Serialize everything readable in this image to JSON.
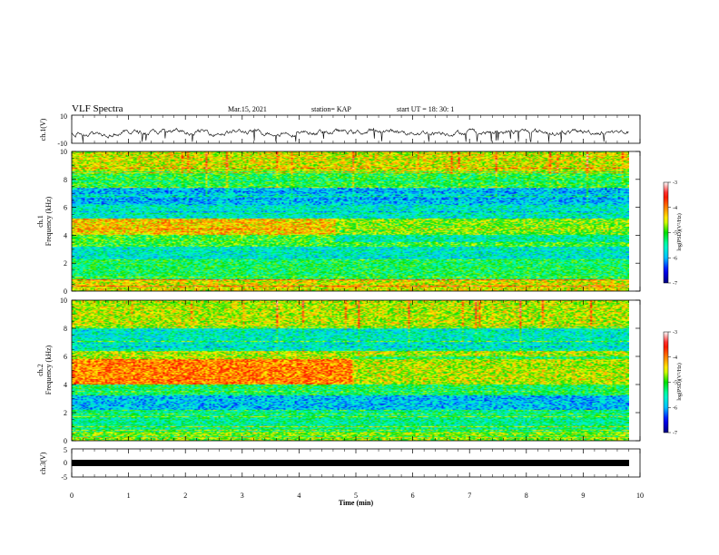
{
  "header": {
    "title": "VLF Spectra",
    "date": "Mar.15, 2021",
    "station": "station= KAP",
    "start": "start  UT =   18: 30: 1"
  },
  "chart_data": [
    {
      "type": "line",
      "panel": "ch1-waveform",
      "ylabel": "ch.1(V)",
      "yticks": [
        "10",
        "-10"
      ],
      "ylim": [
        -10,
        10
      ],
      "xlim": [
        0,
        10
      ],
      "note": "waveform trace with mean near -2 V, fluctuating roughly between -8 and 6 V"
    },
    {
      "type": "heatmap",
      "panel": "ch1-spectrogram",
      "ylabel": "ch.1\nFrequency (kHz)",
      "yticks": [
        "0",
        "2",
        "4",
        "6",
        "8",
        "10"
      ],
      "ylim": [
        0,
        10
      ],
      "xlim": [
        0,
        10
      ],
      "bands_khz": [
        {
          "from": 0,
          "to": 0.8,
          "level": -4.5
        },
        {
          "from": 0.8,
          "to": 2.2,
          "level": -5.2
        },
        {
          "from": 2.2,
          "to": 3.2,
          "level": -5.6
        },
        {
          "from": 3.2,
          "to": 4.0,
          "level": -5.0
        },
        {
          "from": 4.0,
          "to": 5.2,
          "level": -4.3
        },
        {
          "from": 5.2,
          "to": 6.2,
          "level": -5.6
        },
        {
          "from": 6.2,
          "to": 7.4,
          "level": -5.9
        },
        {
          "from": 7.4,
          "to": 8.6,
          "level": -5.1
        },
        {
          "from": 8.6,
          "to": 10,
          "level": -4.5
        }
      ],
      "colorbar": {
        "label": "log(PSD)(V²/Hz)",
        "ticks": [
          "-3",
          "-4",
          "-5",
          "-6",
          "-7"
        ],
        "range": [
          -7,
          -3
        ]
      }
    },
    {
      "type": "heatmap",
      "panel": "ch2-spectrogram",
      "ylabel": "ch.2\nFrequency (kHz)",
      "yticks": [
        "0",
        "2",
        "4",
        "6",
        "8",
        "10"
      ],
      "ylim": [
        0,
        10
      ],
      "xlim": [
        0,
        10
      ],
      "bands_khz": [
        {
          "from": 0,
          "to": 0.6,
          "level": -4.8
        },
        {
          "from": 0.6,
          "to": 2.2,
          "level": -5.4
        },
        {
          "from": 2.2,
          "to": 3.2,
          "level": -5.9
        },
        {
          "from": 3.2,
          "to": 4.0,
          "level": -5.2
        },
        {
          "from": 4.0,
          "to": 5.8,
          "level": -4.0
        },
        {
          "from": 5.8,
          "to": 6.4,
          "level": -4.6
        },
        {
          "from": 6.4,
          "to": 8.0,
          "level": -5.6
        },
        {
          "from": 8.0,
          "to": 10,
          "level": -4.6
        }
      ],
      "colorbar": {
        "label": "log(PSD)(V²/Hz)",
        "ticks": [
          "-3",
          "-4",
          "-5",
          "-6",
          "-7"
        ],
        "range": [
          -7,
          -3
        ]
      }
    },
    {
      "type": "line",
      "panel": "ch3-waveform",
      "ylabel": "ch.3(V)",
      "yticks": [
        "5",
        "0",
        "-5"
      ],
      "ylim": [
        -5,
        5
      ],
      "xlim": [
        0,
        10
      ],
      "note": "near-constant trace at about 0 V"
    }
  ],
  "xaxis": {
    "label": "Time  (min)",
    "ticks": [
      "0",
      "1",
      "2",
      "3",
      "4",
      "5",
      "6",
      "7",
      "8",
      "9",
      "10"
    ]
  },
  "colormap": [
    "#000080",
    "#0000ff",
    "#00c0ff",
    "#00ffc0",
    "#00e000",
    "#ffff00",
    "#ff8000",
    "#ff0000",
    "#ffffff"
  ]
}
